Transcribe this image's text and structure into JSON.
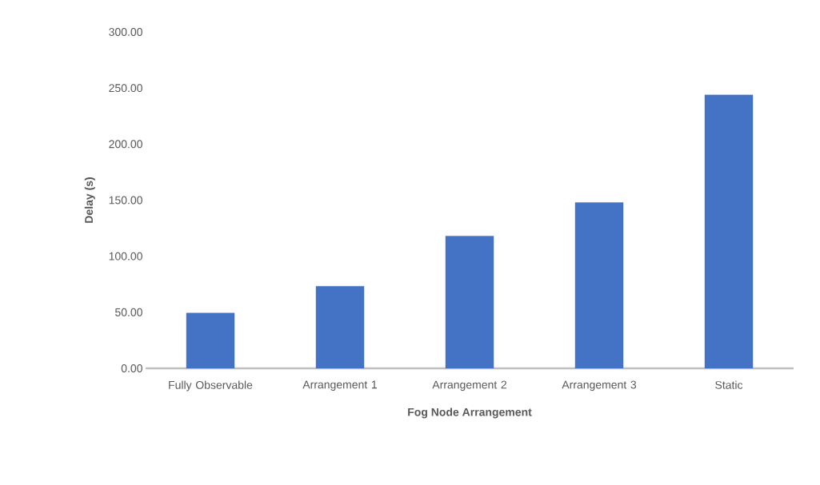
{
  "chart_data": {
    "type": "bar",
    "xlabel": "Fog Node Arrangement",
    "ylabel": "Delay (s)",
    "categories": [
      "Fully Observable",
      "Arrangement 1",
      "Arrangement 2",
      "Arrangement 3",
      "Static"
    ],
    "values": [
      49.3,
      73.2,
      118.0,
      147.9,
      243.8
    ],
    "color": "#4472c4",
    "ylim": [
      0,
      300
    ],
    "yticks": [
      {
        "value": 0,
        "label": "0.00"
      },
      {
        "value": 50,
        "label": "50.00"
      },
      {
        "value": 100,
        "label": "100.00"
      },
      {
        "value": 150,
        "label": "150.00"
      },
      {
        "value": 200,
        "label": "200.00"
      },
      {
        "value": 250,
        "label": "250.00"
      },
      {
        "value": 300,
        "label": "300.00"
      }
    ],
    "grid": false
  }
}
